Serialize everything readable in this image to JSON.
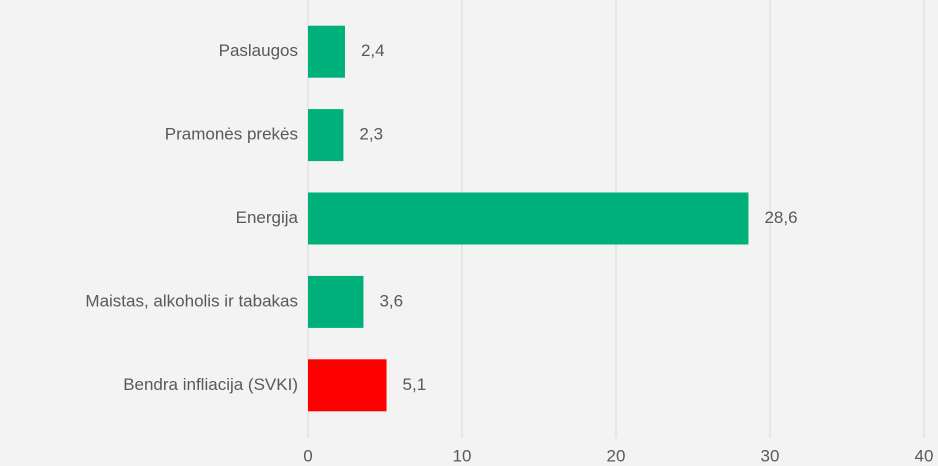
{
  "chart_data": {
    "type": "hbar",
    "categories": [
      "Paslaugos",
      "Pramonės prekės",
      "Energija",
      "Maistas, alkoholis ir tabakas",
      "Bendra infliacija (SVKI)"
    ],
    "values": [
      2.4,
      2.3,
      28.6,
      3.6,
      5.1
    ],
    "value_labels": [
      "2,4",
      "2,3",
      "28,6",
      "3,6",
      "5,1"
    ],
    "colors": [
      "#00b07a",
      "#00b07a",
      "#00b07a",
      "#00b07a",
      "#ff0000"
    ],
    "xlim": [
      0,
      40
    ],
    "xticks": [
      0,
      10,
      20,
      30,
      40
    ],
    "grid": true
  }
}
